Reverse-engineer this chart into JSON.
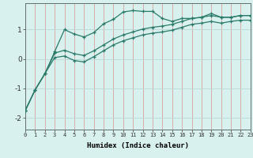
{
  "xlabel": "Humidex (Indice chaleur)",
  "x": [
    0,
    1,
    2,
    3,
    4,
    5,
    6,
    7,
    8,
    9,
    10,
    11,
    12,
    13,
    14,
    15,
    16,
    17,
    18,
    19,
    20,
    21,
    22,
    23
  ],
  "line1": [
    -1.75,
    -1.05,
    -0.5,
    0.25,
    1.0,
    0.85,
    0.75,
    0.9,
    1.2,
    1.35,
    1.6,
    1.65,
    1.62,
    1.62,
    1.38,
    1.28,
    1.38,
    1.38,
    1.42,
    1.55,
    1.42,
    1.42,
    1.48,
    1.48
  ],
  "line2": [
    -1.75,
    -1.05,
    -0.5,
    0.2,
    0.3,
    0.18,
    0.12,
    0.28,
    0.48,
    0.68,
    0.82,
    0.92,
    1.02,
    1.08,
    1.12,
    1.18,
    1.28,
    1.38,
    1.42,
    1.48,
    1.42,
    1.42,
    1.48,
    1.48
  ],
  "line3": [
    -1.75,
    -1.05,
    -0.5,
    0.05,
    0.1,
    -0.05,
    -0.1,
    0.08,
    0.28,
    0.48,
    0.62,
    0.72,
    0.82,
    0.88,
    0.92,
    0.98,
    1.08,
    1.18,
    1.22,
    1.28,
    1.22,
    1.28,
    1.32,
    1.32
  ],
  "color": "#2a7a6a",
  "bg_color": "#d8f0ee",
  "vgrid_color": "#daa0a0",
  "hgrid_color": "#b8d8d8",
  "ylim": [
    -2.4,
    1.9
  ],
  "xlim": [
    0,
    23
  ],
  "yticks": [
    -2,
    -1,
    0,
    1
  ],
  "xticks": [
    0,
    1,
    2,
    3,
    4,
    5,
    6,
    7,
    8,
    9,
    10,
    11,
    12,
    13,
    14,
    15,
    16,
    17,
    18,
    19,
    20,
    21,
    22,
    23
  ]
}
